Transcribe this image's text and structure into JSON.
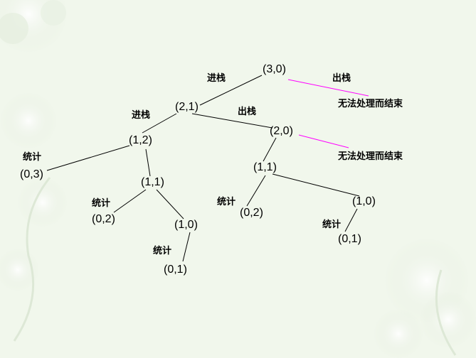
{
  "nodes": {
    "n30": "(3,0)",
    "n21": "(2,1)",
    "n20": "(2,0)",
    "n12": "(1,2)",
    "n03": "(0,3)",
    "n11a": "(1,1)",
    "n02a": "(0,2)",
    "n10a": "(1,0)",
    "n01a": "(0,1)",
    "n11b": "(1,1)",
    "n02b": "(0,2)",
    "n10b": "(1,0)",
    "n01b": "(0,1)"
  },
  "labels": {
    "push": "进栈",
    "pop": "出栈",
    "count": "统计",
    "no_op_end": "无法处理而结束"
  },
  "colors": {
    "edge": "#000000",
    "terminate_edge": "#ff00ff",
    "background": "#f1f7ec"
  }
}
